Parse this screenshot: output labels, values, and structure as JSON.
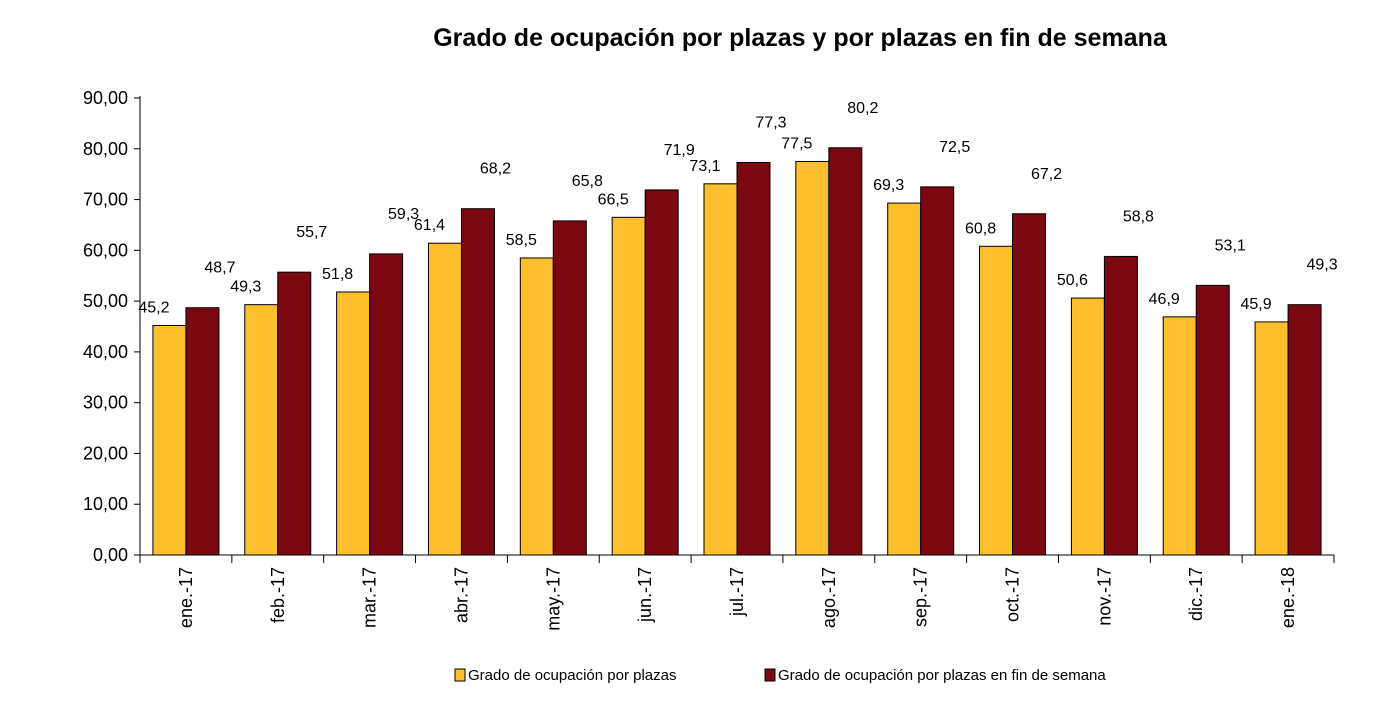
{
  "chart_data": {
    "type": "bar",
    "title": "Grado de ocupación por plazas y por plazas en fin de semana",
    "xlabel": "",
    "ylabel": "",
    "ylim": [
      0,
      90
    ],
    "yticks": [
      "0,00",
      "10,00",
      "20,00",
      "30,00",
      "40,00",
      "50,00",
      "60,00",
      "70,00",
      "80,00",
      "90,00"
    ],
    "categories": [
      "ene.-17",
      "feb.-17",
      "mar.-17",
      "abr.-17",
      "may.-17",
      "jun.-17",
      "jul.-17",
      "ago.-17",
      "sep.-17",
      "oct.-17",
      "nov.-17",
      "dic.-17",
      "ene.-18"
    ],
    "series": [
      {
        "name": "Grado de ocupación por plazas",
        "color": "#FDBF2D",
        "values": [
          45.2,
          49.3,
          51.8,
          61.4,
          58.5,
          66.5,
          73.1,
          77.5,
          69.3,
          60.8,
          50.6,
          46.9,
          45.9
        ],
        "labels": [
          "45,2",
          "49,3",
          "51,8",
          "61,4",
          "58,5",
          "66,5",
          "73,1",
          "77,5",
          "69,3",
          "60,8",
          "50,6",
          "46,9",
          "45,9"
        ]
      },
      {
        "name": "Grado de ocupación por plazas en fin de semana",
        "color": "#7B0711",
        "values": [
          48.7,
          55.7,
          59.3,
          68.2,
          65.8,
          71.9,
          77.3,
          80.2,
          72.5,
          67.2,
          58.8,
          53.1,
          49.3
        ],
        "labels": [
          "48,7",
          "55,7",
          "59,3",
          "68,2",
          "65,8",
          "71,9",
          "77,3",
          "80,2",
          "72,5",
          "67,2",
          "58,8",
          "53,1",
          "49,3"
        ]
      }
    ],
    "grid": false,
    "legend_position": "bottom"
  }
}
